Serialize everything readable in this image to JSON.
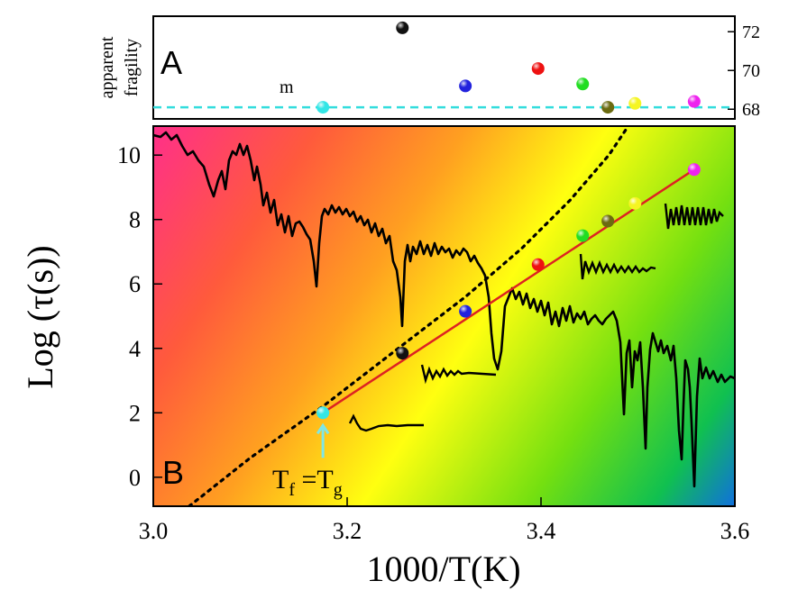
{
  "chart_data": [
    {
      "panel": "A",
      "type": "scatter",
      "panel_label": "A",
      "ylabel_lines": [
        "apparent",
        "fragility"
      ],
      "right_yticks": [
        "68",
        "70",
        "72"
      ],
      "ylim": [
        67.5,
        72.8
      ],
      "reference_line": {
        "y": 68.1,
        "label": "m",
        "color": "#33dddd",
        "style": "dashed"
      },
      "points": [
        {
          "x": 3.175,
          "y": 68.1,
          "color": "#33e6e6"
        },
        {
          "x": 3.257,
          "y": 72.2,
          "color": "#111111"
        },
        {
          "x": 3.322,
          "y": 69.2,
          "color": "#2222dd"
        },
        {
          "x": 3.397,
          "y": 70.1,
          "color": "#ee1111"
        },
        {
          "x": 3.443,
          "y": 69.3,
          "color": "#22dd22"
        },
        {
          "x": 3.469,
          "y": 68.1,
          "color": "#6b6b10"
        },
        {
          "x": 3.497,
          "y": 68.3,
          "color": "#f5f522"
        },
        {
          "x": 3.558,
          "y": 68.4,
          "color": "#ee22ee"
        }
      ]
    },
    {
      "panel": "B",
      "type": "scatter",
      "panel_label": "B",
      "xlabel": "1000/T(K)",
      "ylabel": "Log (τ(s))",
      "xticks": [
        "3.0",
        "3.2",
        "3.4",
        "3.6"
      ],
      "yticks": [
        "0",
        "2",
        "4",
        "6",
        "8",
        "10"
      ],
      "xlim": [
        3.0,
        3.6
      ],
      "ylim": [
        -0.9,
        10.9
      ],
      "annotation": {
        "tf": "T",
        "tf_sub": "f",
        "eq": " =T",
        "tg_sub": "g",
        "x": 3.175,
        "arrow_color": "#7fe6e6"
      },
      "fit_line": {
        "x": [
          3.175,
          3.558
        ],
        "y": [
          2.0,
          9.55
        ],
        "color": "#dd2222"
      },
      "vft_curve": {
        "color": "#000000",
        "style": "dotted",
        "points": [
          [
            3.037,
            -0.9
          ],
          [
            3.1,
            0.6
          ],
          [
            3.175,
            2.2
          ],
          [
            3.257,
            4.1
          ],
          [
            3.322,
            5.6
          ],
          [
            3.38,
            7.1
          ],
          [
            3.43,
            8.6
          ],
          [
            3.47,
            10.0
          ],
          [
            3.49,
            10.9
          ]
        ]
      },
      "points": [
        {
          "x": 3.175,
          "y": 2.0,
          "color": "#33e6e6"
        },
        {
          "x": 3.257,
          "y": 3.85,
          "color": "#111111"
        },
        {
          "x": 3.322,
          "y": 5.15,
          "color": "#2222dd"
        },
        {
          "x": 3.397,
          "y": 6.6,
          "color": "#ee1111"
        },
        {
          "x": 3.443,
          "y": 7.5,
          "color": "#22dd22"
        },
        {
          "x": 3.469,
          "y": 7.95,
          "color": "#6b6b10"
        },
        {
          "x": 3.497,
          "y": 8.5,
          "color": "#f5f522"
        },
        {
          "x": 3.558,
          "y": 9.55,
          "color": "#ee22ee"
        }
      ]
    }
  ]
}
